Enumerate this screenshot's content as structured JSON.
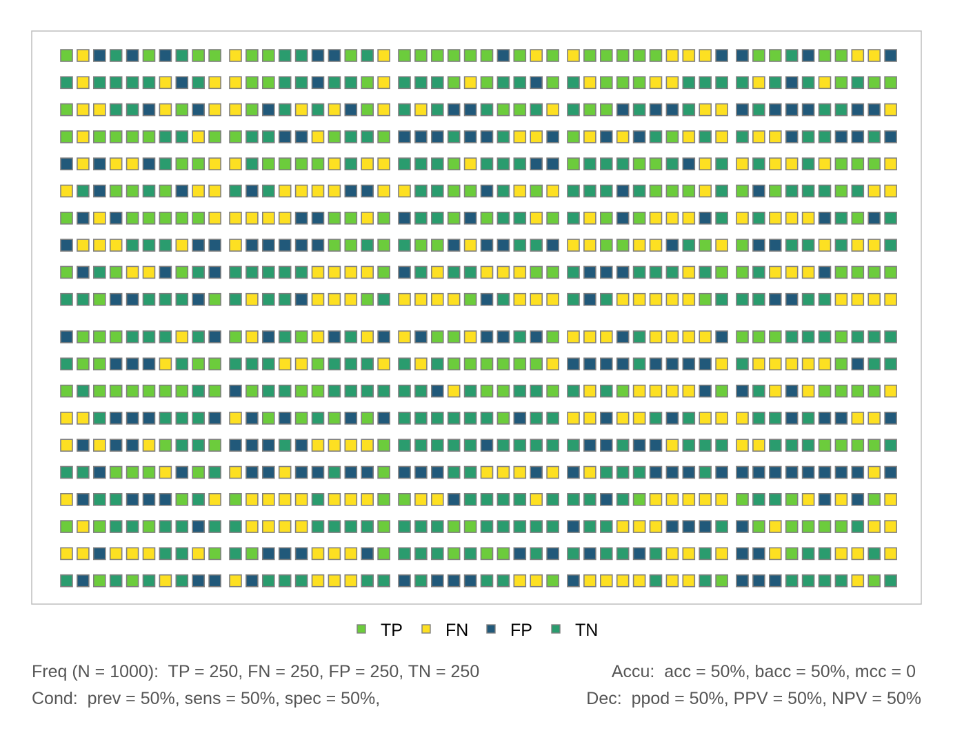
{
  "chart_data": {
    "type": "icon-array",
    "title": "",
    "population": 1000,
    "layout": {
      "blocks": {
        "rows": 2,
        "cols": 5
      },
      "block_cells": {
        "rows": 10,
        "cols": 10
      }
    },
    "categories": [
      "TP",
      "FN",
      "FP",
      "TN"
    ],
    "colors": {
      "TP": "#6ccc3c",
      "FN": "#fde022",
      "FP": "#21597a",
      "TN": "#2a9c6e",
      "border": "#7f7f7f"
    },
    "counts": {
      "TP": 250,
      "FN": 250,
      "FP": 250,
      "TN": 250
    },
    "cells": [
      "ABCDCACDAA BAADDCCADB AAAAAACABA BAAAAABBBC CAADCAABBC",
      "DBDDDDBCDB BAADDCDDAB DDDABADDCA DBAAABBDDD DBDCDBADAA",
      "ABBDDCBACB BACDBDBCAB DBDCCDAADB DAACDCCDBB CDCCCDDCCB",
      "ABAAAADDBA ADDCCBADDA CCCDCCDBBC ABCBCDABDB DBBCDDCCDC",
      "CBCBBCDAAB BDAAAABDBB DDDABDDDCC ADDDAADCBD BDBBDBAAAB",
      "BDCAADACBB DCDBBBBCCB BDDAACDBAB DDDCDAAABD ACADDDADBB",
      "ACBCAAAAAB BBBBCCAABA CDDACADDBA DBACABBBCD BDBBBCDACD",
      "CBBBDDDBCC BCCCCCAADA DAACBCCDDC BBAABBCDAB ACCDDBDBBD",
      "ACDABBCADC DDDDDBBBBA CDBDDBBBAA DCCCDDDBDA ADBBBCAAAA",
      "DDACCDDDCA DBDDCBBBAD BBBBACDBBB DCDBBBBBAD DDCCDDBBBB",
      "CAAADDDBDC ABCDABCDBC BCAABCCDCA BBBCDBBBBC AAADDDADDD",
      "DAACCCBDAA DDDBBADDDB DBDAAAAAAB CCCCDCCCCB DBBBBBACDD",
      "ADAAAAAADA CADDAADDDD DDCBDAADDA DBDABBBBCA CDBCBAAAAB",
      "BBDCCCDDDC BCACADACAC DDDDDDACDD BBCBBDCDBB BDDCDCCBBC",
      "BCBCCBADDA CCCDCBBBBA DDDDDCDDDD DCCDCCBDDD BBDDDAAAAD",
      "DDCAAABCAD BCCBCCDCCA CCCDDBBBCB CBDDDCCCDC CCCCCCCCBC",
      "BCDDCCCADB ABBBBDBBBA ABBCDDDDBD DDCDABBBBB ADDABCBCAB",
      "ABADDADDCD DBBBBDDDDA DDDAADDDDD CDDBBBCCCD CABAAAADBB",
      "BBCBBBDDBA DACCCBBBCA DDDADAACDC DCDDCDBBDB CCBADDBBDB",
      "DCADADBDCC BCDDDBBBDD CDCCCDDBBA CBBBBDBBDA CCCDDDDBAD"
    ],
    "legend": [
      "TP",
      "FN",
      "FP",
      "TN"
    ],
    "legend_position": "bottom"
  },
  "notes": {
    "freq": "Freq (N = 1000):  TP = 250, FN = 250, FP = 250, TN = 250",
    "accu": "Accu:  acc = 50%, bacc = 50%, mcc = 0",
    "cond": "Cond:  prev = 50%, sens = 50%, spec = 50%,",
    "dec": "Dec:  ppod = 50%, PPV = 50%, NPV = 50%"
  }
}
